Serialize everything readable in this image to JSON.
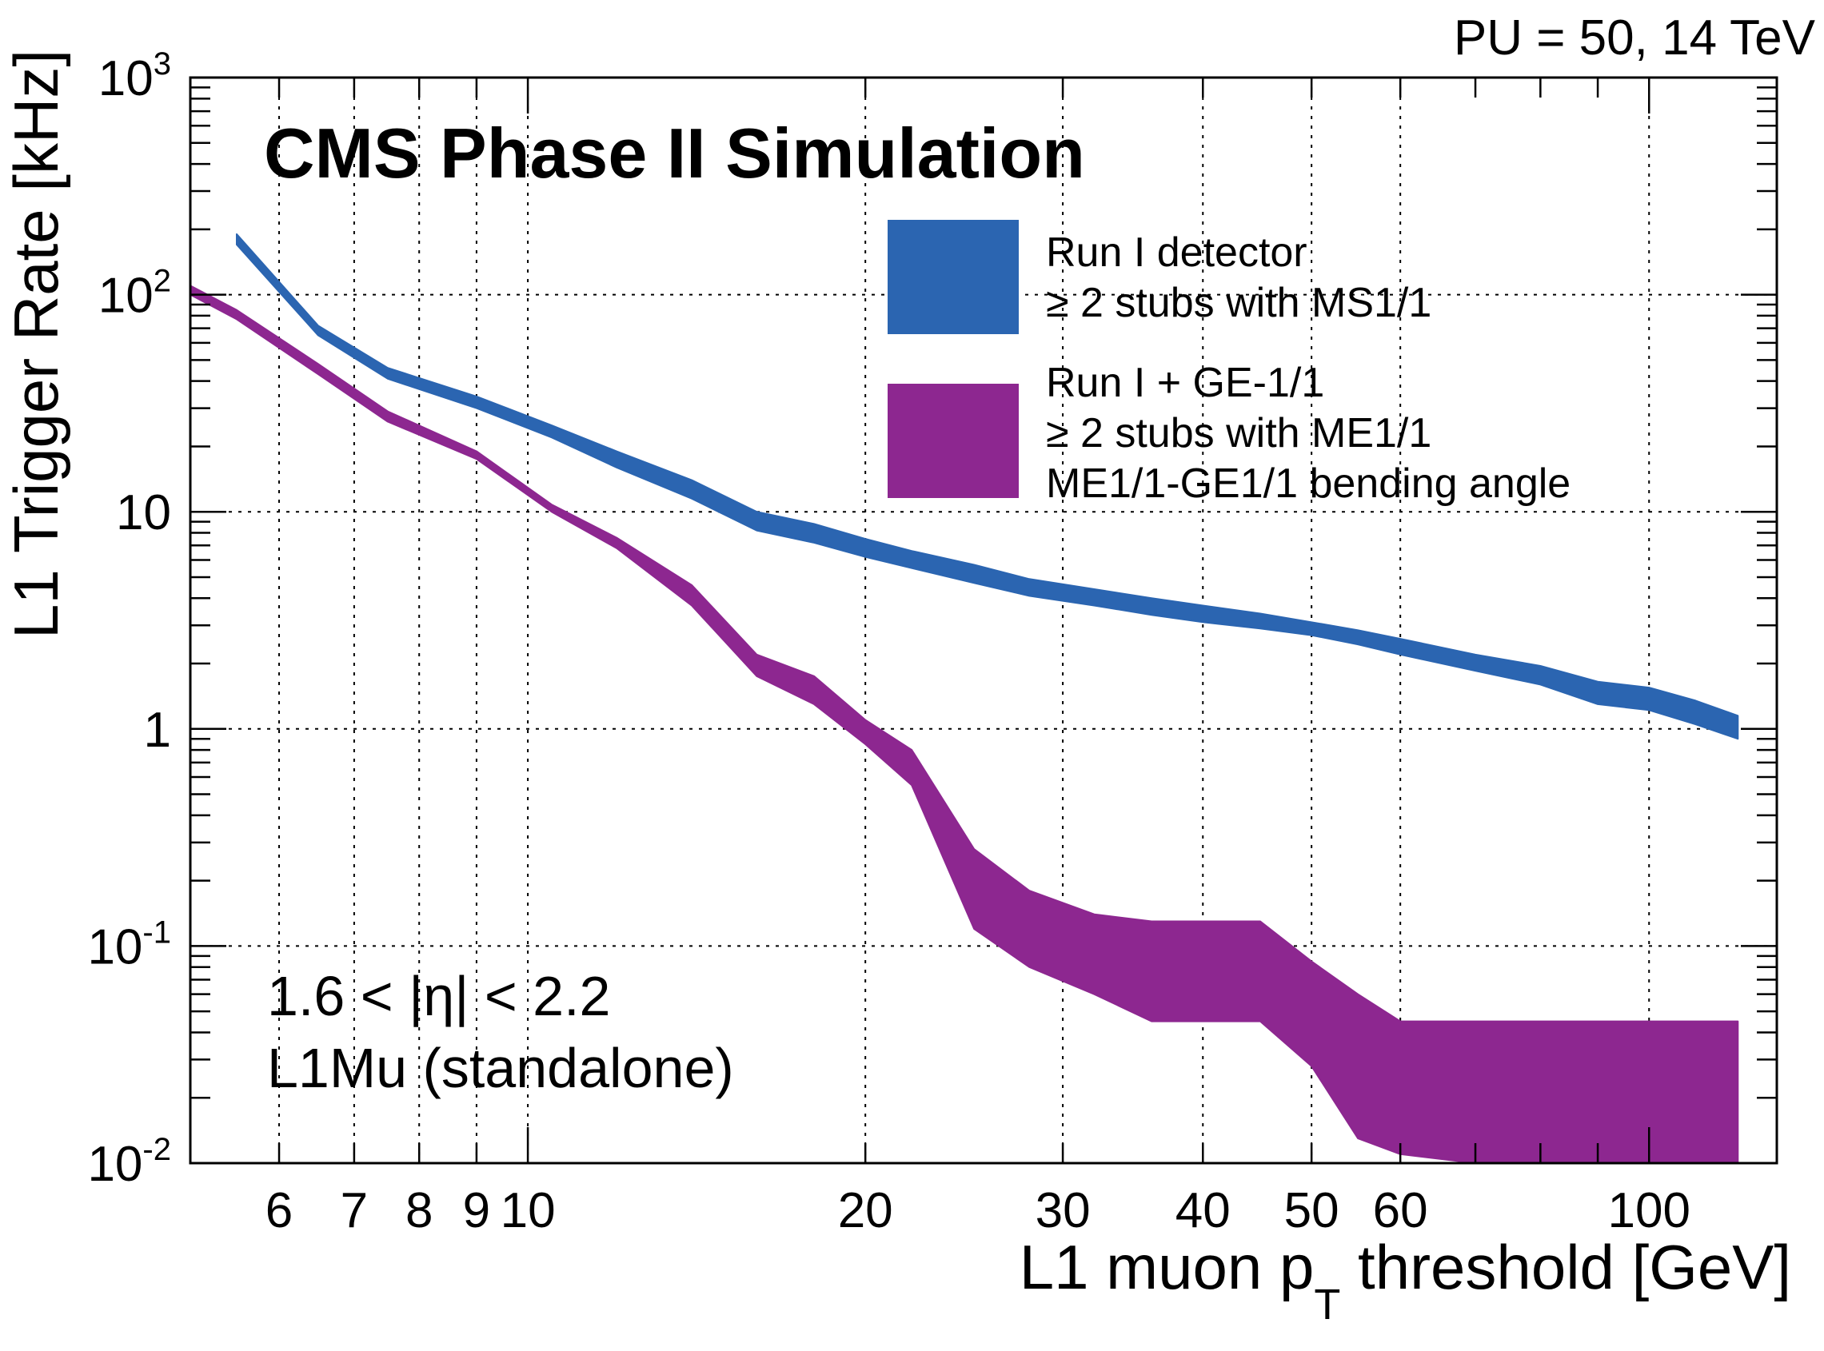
{
  "chart_data": {
    "type": "area",
    "title": "CMS Phase II Simulation",
    "top_right_label": "PU = 50, 14 TeV",
    "xlabel": "L1 muon p",
    "xlabel_sub": "T",
    "xlabel_suffix": " threshold [GeV]",
    "ylabel": "L1 Trigger Rate [kHz]",
    "x_scale": "log",
    "y_scale": "log",
    "xlim": [
      5,
      130
    ],
    "ylim": [
      0.01,
      1000
    ],
    "grid": true,
    "legend_placement": "top-right",
    "x_ticks": [
      {
        "value": 6,
        "label": "6"
      },
      {
        "value": 7,
        "label": "7"
      },
      {
        "value": 8,
        "label": "8"
      },
      {
        "value": 9,
        "label": "9"
      },
      {
        "value": 10,
        "label": "10"
      },
      {
        "value": 20,
        "label": "20"
      },
      {
        "value": 30,
        "label": "30"
      },
      {
        "value": 40,
        "label": "40"
      },
      {
        "value": 50,
        "label": "50"
      },
      {
        "value": 60,
        "label": "60"
      },
      {
        "value": 100,
        "label": "100"
      }
    ],
    "y_ticks": [
      {
        "value": 0.01,
        "base": "10",
        "exp": "-2"
      },
      {
        "value": 0.1,
        "base": "10",
        "exp": "-1"
      },
      {
        "value": 1,
        "base": "1",
        "exp": ""
      },
      {
        "value": 10,
        "base": "10",
        "exp": ""
      },
      {
        "value": 100,
        "base": "10",
        "exp": "2"
      },
      {
        "value": 1000,
        "base": "10",
        "exp": "3"
      }
    ],
    "annotations": [
      "1.6 < |η| < 2.2",
      "L1Mu (standalone)"
    ],
    "series": [
      {
        "name": "Run I detector",
        "legend_lines": [
          "Run I detector",
          "≥ 2 stubs with MS1/1"
        ],
        "color": "#2b65b1",
        "x": [
          5.5,
          6.5,
          7.5,
          9,
          10.5,
          12,
          14,
          16,
          18,
          20,
          22,
          25,
          28,
          32,
          36,
          40,
          45,
          50,
          55,
          60,
          70,
          80,
          90,
          100,
          110,
          120
        ],
        "upper": [
          190,
          72,
          46,
          34,
          25,
          19,
          14,
          10,
          8.8,
          7.5,
          6.6,
          5.7,
          4.9,
          4.4,
          4.0,
          3.7,
          3.4,
          3.1,
          2.85,
          2.6,
          2.2,
          1.95,
          1.65,
          1.55,
          1.35,
          1.15
        ],
        "lower": [
          170,
          65,
          41,
          30,
          22,
          16,
          11.5,
          8.2,
          7.2,
          6.2,
          5.5,
          4.7,
          4.1,
          3.7,
          3.35,
          3.1,
          2.9,
          2.7,
          2.45,
          2.2,
          1.85,
          1.6,
          1.3,
          1.22,
          1.05,
          0.9
        ]
      },
      {
        "name": "Run I + GE-1/1",
        "legend_lines": [
          "Run I + GE-1/1",
          "≥ 2 stubs with ME1/1",
          "ME1/1-GE1/1 bending angle"
        ],
        "color": "#8d2790",
        "x": [
          5,
          5.5,
          6.5,
          7.5,
          9,
          10.5,
          12,
          14,
          16,
          18,
          20,
          22,
          25,
          28,
          32,
          36,
          40,
          45,
          50,
          55,
          60,
          70,
          80,
          90,
          100,
          110,
          120
        ],
        "upper": [
          110,
          85,
          48,
          29,
          19,
          10.8,
          7.6,
          4.6,
          2.2,
          1.75,
          1.1,
          0.8,
          0.28,
          0.18,
          0.14,
          0.13,
          0.13,
          0.13,
          0.085,
          0.06,
          0.045,
          0.045,
          0.045,
          0.045,
          0.045,
          0.045,
          0.045
        ],
        "lower": [
          100,
          77,
          43,
          26,
          17.5,
          10.0,
          6.8,
          3.7,
          1.75,
          1.3,
          0.85,
          0.55,
          0.12,
          0.08,
          0.06,
          0.045,
          0.045,
          0.045,
          0.028,
          0.013,
          0.011,
          0.01,
          0.01,
          0.01,
          0.01,
          0.01,
          0.01
        ]
      }
    ]
  }
}
